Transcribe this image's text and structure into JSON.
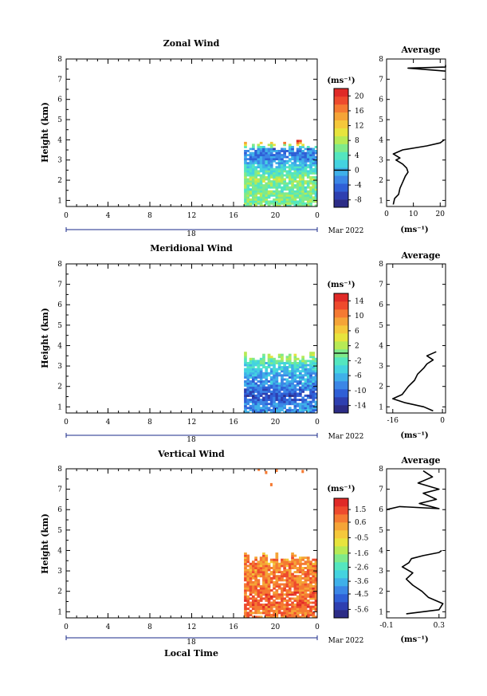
{
  "colors": {
    "palette": [
      "#2c2c86",
      "#2e3fb0",
      "#2f5fd6",
      "#3b86e6",
      "#3fb0e9",
      "#44d3e0",
      "#54e6bf",
      "#7fea8a",
      "#b7ea55",
      "#e7e43d",
      "#f5c83b",
      "#f5a437",
      "#f57a32",
      "#ee4a2d",
      "#e02a27"
    ]
  },
  "chart_data": [
    {
      "type": "heatmap",
      "title": "Zonal Wind",
      "ylabel": "Height (km)",
      "xlabel": "",
      "x_ticks": [
        "0",
        "4",
        "8",
        "12",
        "16",
        "20",
        "0"
      ],
      "y_ticks": [
        "1",
        "2",
        "3",
        "4",
        "5",
        "6",
        "7",
        "8"
      ],
      "xlim": [
        0,
        24
      ],
      "ylim": [
        0.7,
        8.0
      ],
      "date_label": "18",
      "month_label": "Mar 2022",
      "colorbar": {
        "unit": "(ms⁻¹)",
        "ticks": [
          "20",
          "16",
          "12",
          "8",
          "4",
          "0",
          "-4",
          "-8"
        ],
        "range": [
          -10,
          22
        ],
        "zero_marker": 0
      },
      "data_extent": {
        "x_start": 17.0,
        "x_end": 24.0,
        "height_top": 4.0
      },
      "field_description_levels": [
        {
          "height": 1.0,
          "value": 6
        },
        {
          "height": 1.5,
          "value": 5
        },
        {
          "height": 2.0,
          "value": 7
        },
        {
          "height": 2.5,
          "value": 3
        },
        {
          "height": 3.0,
          "value": -2
        },
        {
          "height": 3.5,
          "value": -3
        },
        {
          "height": 3.9,
          "value": 20
        }
      ],
      "average_profile": {
        "title": "Average",
        "xlabel": "(ms⁻¹)",
        "x_ticks": [
          "0",
          "10",
          "20"
        ],
        "xlim": [
          0,
          22
        ],
        "points": [
          [
            2.5,
            0.8
          ],
          [
            3.0,
            1.1
          ],
          [
            4.5,
            1.3
          ],
          [
            5.0,
            1.6
          ],
          [
            6.0,
            1.9
          ],
          [
            7.0,
            2.2
          ],
          [
            8.0,
            2.4
          ],
          [
            7.5,
            2.6
          ],
          [
            6.0,
            2.8
          ],
          [
            3.5,
            3.0
          ],
          [
            5.0,
            3.1
          ],
          [
            2.5,
            3.3
          ],
          [
            6.0,
            3.5
          ],
          [
            15.0,
            3.7
          ],
          [
            20.0,
            3.85
          ],
          [
            21.5,
            4.0
          ],
          [
            22.0,
            7.4
          ],
          [
            8.0,
            7.55
          ],
          [
            22.0,
            7.6
          ],
          [
            22.0,
            7.7
          ]
        ]
      }
    },
    {
      "type": "heatmap",
      "title": "Meridional Wind",
      "ylabel": "Height (km)",
      "xlabel": "",
      "x_ticks": [
        "0",
        "4",
        "8",
        "12",
        "16",
        "20",
        "0"
      ],
      "y_ticks": [
        "1",
        "2",
        "3",
        "4",
        "5",
        "6",
        "7",
        "8"
      ],
      "xlim": [
        0,
        24
      ],
      "ylim": [
        0.7,
        8.0
      ],
      "date_label": "18",
      "month_label": "Mar 2022",
      "colorbar": {
        "unit": "(ms⁻¹)",
        "ticks": [
          "14",
          "10",
          "6",
          "2",
          "-2",
          "-6",
          "-10",
          "-14"
        ],
        "range": [
          -16,
          16
        ],
        "zero_marker": 0
      },
      "data_extent": {
        "x_start": 17.0,
        "x_end": 24.0,
        "height_top": 3.7
      },
      "field_description_levels": [
        {
          "height": 1.0,
          "value": -8
        },
        {
          "height": 1.5,
          "value": -12
        },
        {
          "height": 2.0,
          "value": -8
        },
        {
          "height": 2.5,
          "value": -7
        },
        {
          "height": 3.0,
          "value": -4
        },
        {
          "height": 3.4,
          "value": 1
        }
      ],
      "average_profile": {
        "title": "Average",
        "xlabel": "(ms⁻¹)",
        "x_ticks": [
          "-16",
          "0"
        ],
        "xlim": [
          -18,
          1
        ],
        "points": [
          [
            -3,
            0.8
          ],
          [
            -6,
            1.0
          ],
          [
            -12,
            1.2
          ],
          [
            -16,
            1.4
          ],
          [
            -13,
            1.6
          ],
          [
            -11,
            2.0
          ],
          [
            -9,
            2.3
          ],
          [
            -8,
            2.6
          ],
          [
            -6,
            2.9
          ],
          [
            -5,
            3.1
          ],
          [
            -3,
            3.3
          ],
          [
            -5,
            3.5
          ],
          [
            -2,
            3.7
          ]
        ]
      }
    },
    {
      "type": "heatmap",
      "title": "Vertical Wind",
      "ylabel": "Height (km)",
      "xlabel": "Local Time",
      "x_ticks": [
        "0",
        "4",
        "8",
        "12",
        "16",
        "20",
        "0"
      ],
      "y_ticks": [
        "1",
        "2",
        "3",
        "4",
        "5",
        "6",
        "7",
        "8"
      ],
      "xlim": [
        0,
        24
      ],
      "ylim": [
        0.7,
        8.0
      ],
      "date_label": "18",
      "month_label": "Mar 2022",
      "colorbar": {
        "unit": "(ms⁻¹)",
        "ticks": [
          "1.5",
          "0.6",
          "-0.5",
          "-1.6",
          "-2.6",
          "-3.6",
          "-4.5",
          "-5.6"
        ],
        "range": [
          -6.2,
          2.3
        ],
        "zero_marker": null
      },
      "data_extent": {
        "x_start": 17.0,
        "x_end": 24.0,
        "height_top": 3.9
      },
      "field_description_levels": [
        {
          "height": 1.0,
          "value": 0.9
        },
        {
          "height": 1.5,
          "value": 1.3
        },
        {
          "height": 2.0,
          "value": 1.1
        },
        {
          "height": 2.5,
          "value": 0.8
        },
        {
          "height": 3.0,
          "value": 0.7
        },
        {
          "height": 3.7,
          "value": 0.6
        }
      ],
      "average_profile": {
        "title": "Average",
        "xlabel": "(ms⁻¹)",
        "x_ticks": [
          "-0.1",
          "0.3"
        ],
        "xlim": [
          -0.1,
          0.35
        ],
        "points": [
          [
            0.05,
            0.9
          ],
          [
            0.3,
            1.1
          ],
          [
            0.33,
            1.4
          ],
          [
            0.22,
            1.7
          ],
          [
            0.17,
            2.0
          ],
          [
            0.1,
            2.3
          ],
          [
            0.05,
            2.6
          ],
          [
            0.1,
            2.9
          ],
          [
            0.02,
            3.2
          ],
          [
            0.07,
            3.4
          ],
          [
            0.09,
            3.6
          ],
          [
            0.18,
            3.75
          ],
          [
            0.3,
            3.9
          ],
          [
            0.32,
            4.0
          ],
          [
            -0.1,
            6.0
          ],
          [
            0.0,
            6.15
          ],
          [
            0.3,
            6.05
          ],
          [
            0.15,
            6.3
          ],
          [
            0.28,
            6.5
          ],
          [
            0.18,
            6.8
          ],
          [
            0.3,
            7.0
          ],
          [
            0.14,
            7.3
          ],
          [
            0.25,
            7.6
          ],
          [
            0.18,
            7.9
          ]
        ]
      }
    }
  ]
}
